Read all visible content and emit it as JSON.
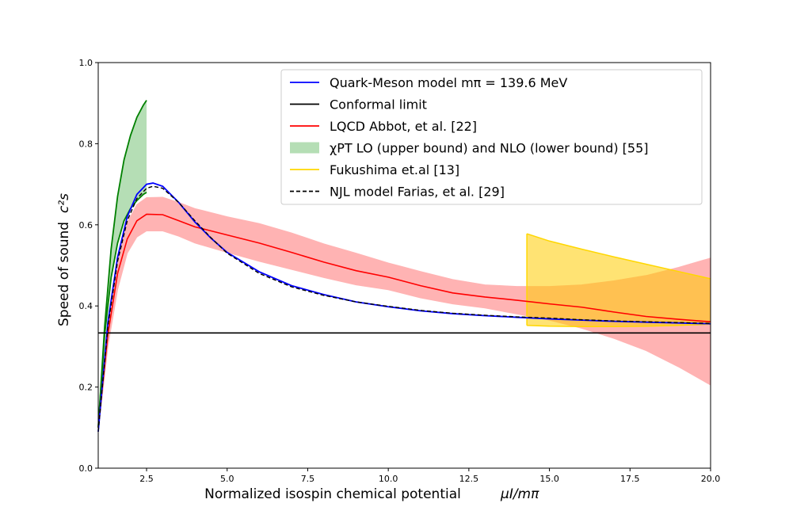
{
  "chart_data": {
    "type": "line",
    "xlabel": "Normalized isospin chemical potential",
    "xlabel_math": "μI/mπ",
    "ylabel": "Speed of sound",
    "ylabel_math": "c²s",
    "xlim": [
      1.0,
      20.0
    ],
    "ylim": [
      0.0,
      1.0
    ],
    "x_ticks": [
      2.5,
      5.0,
      7.5,
      10.0,
      12.5,
      15.0,
      17.5,
      20.0
    ],
    "x_tick_labels": [
      "2.5",
      "5.0",
      "7.5",
      "10.0",
      "12.5",
      "15.0",
      "17.5",
      "20.0"
    ],
    "y_ticks": [
      0.0,
      0.2,
      0.4,
      0.6,
      0.8,
      1.0
    ],
    "y_tick_labels": [
      "0.0",
      "0.2",
      "0.4",
      "0.6",
      "0.8",
      "1.0"
    ],
    "grid": false,
    "legend_position": "top-right",
    "legend": [
      {
        "label": "Quark-Meson model mπ = 139.6 MeV",
        "color": "#0000ff",
        "style": "solid"
      },
      {
        "label": "Conformal limit",
        "color": "#000000",
        "style": "solid"
      },
      {
        "label": "LQCD Abbot, et al. [22]",
        "color": "#ff0000",
        "style": "solid"
      },
      {
        "label": "χPT LO (upper bound) and NLO (lower bound) [55]",
        "color": "#2ca02c",
        "style": "band"
      },
      {
        "label": "Fukushima et.al [13]",
        "color": "#ffd700",
        "style": "solid"
      },
      {
        "label": "NJL model Farias, et al. [29]",
        "color": "#000000",
        "style": "dashed"
      }
    ],
    "series": [
      {
        "name": "Quark-Meson model mπ = 139.6 MeV",
        "color": "#0000ff",
        "style": "solid",
        "x": [
          1.0,
          1.3,
          1.6,
          1.9,
          2.2,
          2.5,
          2.7,
          3.0,
          3.5,
          4.0,
          4.5,
          5.0,
          6.0,
          7.0,
          8.0,
          9.0,
          10.0,
          11.0,
          12.0,
          13.0,
          14.0,
          15.0,
          16.0,
          17.0,
          18.0,
          19.0,
          20.0
        ],
        "y": [
          0.09,
          0.36,
          0.52,
          0.62,
          0.675,
          0.7,
          0.703,
          0.695,
          0.655,
          0.607,
          0.567,
          0.532,
          0.484,
          0.45,
          0.428,
          0.41,
          0.398,
          0.388,
          0.381,
          0.376,
          0.372,
          0.368,
          0.365,
          0.362,
          0.36,
          0.358,
          0.356
        ]
      },
      {
        "name": "NJL model Farias, et al. [29]",
        "color": "#000000",
        "style": "dashed",
        "x": [
          1.0,
          1.3,
          1.6,
          1.9,
          2.2,
          2.5,
          2.7,
          3.0,
          3.5,
          4.0,
          4.5,
          5.0,
          6.0,
          7.0,
          8.0,
          9.0,
          10.0,
          11.0,
          12.0,
          13.0,
          14.0,
          15.0,
          16.0,
          17.0,
          18.0,
          19.0,
          20.0
        ],
        "y": [
          0.09,
          0.35,
          0.51,
          0.61,
          0.665,
          0.69,
          0.695,
          0.69,
          0.655,
          0.61,
          0.568,
          0.53,
          0.48,
          0.447,
          0.426,
          0.41,
          0.399,
          0.389,
          0.382,
          0.377,
          0.373,
          0.37,
          0.366,
          0.363,
          0.361,
          0.359,
          0.357
        ]
      },
      {
        "name": "LQCD Abbot, et al. [22]",
        "color": "#ff0000",
        "style": "solid",
        "x": [
          1.0,
          1.3,
          1.6,
          1.9,
          2.2,
          2.5,
          3.0,
          3.5,
          4.0,
          5.0,
          6.0,
          7.0,
          8.0,
          9.0,
          10.0,
          11.0,
          12.0,
          13.0,
          14.0,
          15.0,
          16.0,
          17.0,
          18.0,
          19.0,
          20.0
        ],
        "y": [
          0.1,
          0.33,
          0.48,
          0.565,
          0.61,
          0.626,
          0.625,
          0.61,
          0.595,
          0.575,
          0.555,
          0.532,
          0.508,
          0.487,
          0.471,
          0.45,
          0.432,
          0.422,
          0.414,
          0.405,
          0.397,
          0.385,
          0.374,
          0.367,
          0.361
        ],
        "band_lower": [
          0.09,
          0.3,
          0.44,
          0.53,
          0.57,
          0.585,
          0.585,
          0.572,
          0.555,
          0.532,
          0.51,
          0.49,
          0.47,
          0.452,
          0.44,
          0.42,
          0.405,
          0.395,
          0.38,
          0.365,
          0.345,
          0.32,
          0.29,
          0.25,
          0.205
        ],
        "band_upper": [
          0.11,
          0.36,
          0.52,
          0.605,
          0.65,
          0.667,
          0.668,
          0.655,
          0.64,
          0.62,
          0.603,
          0.58,
          0.553,
          0.53,
          0.506,
          0.485,
          0.465,
          0.452,
          0.448,
          0.448,
          0.452,
          0.462,
          0.475,
          0.495,
          0.518
        ]
      },
      {
        "name": "χPT LO (upper bound) and NLO (lower bound) [55]",
        "color": "#008000",
        "style": "band",
        "x": [
          1.0,
          1.2,
          1.4,
          1.6,
          1.8,
          2.0,
          2.2,
          2.4,
          2.5
        ],
        "upper": [
          0.1,
          0.35,
          0.54,
          0.67,
          0.76,
          0.82,
          0.865,
          0.895,
          0.907
        ],
        "lower": [
          0.1,
          0.33,
          0.47,
          0.555,
          0.61,
          0.64,
          0.66,
          0.675,
          0.68
        ]
      },
      {
        "name": "Fukushima et.al [13]",
        "color": "#ffd700",
        "style": "band",
        "x": [
          14.3,
          15.0,
          16.0,
          17.0,
          18.0,
          19.0,
          20.0
        ],
        "upper": [
          0.578,
          0.56,
          0.54,
          0.521,
          0.503,
          0.485,
          0.467
        ],
        "lower": [
          0.352,
          0.35,
          0.349,
          0.349,
          0.35,
          0.352,
          0.355
        ]
      },
      {
        "name": "Conformal limit",
        "color": "#000000",
        "style": "solid",
        "x": [
          1.0,
          20.0
        ],
        "y": [
          0.3333,
          0.3333
        ]
      }
    ]
  }
}
